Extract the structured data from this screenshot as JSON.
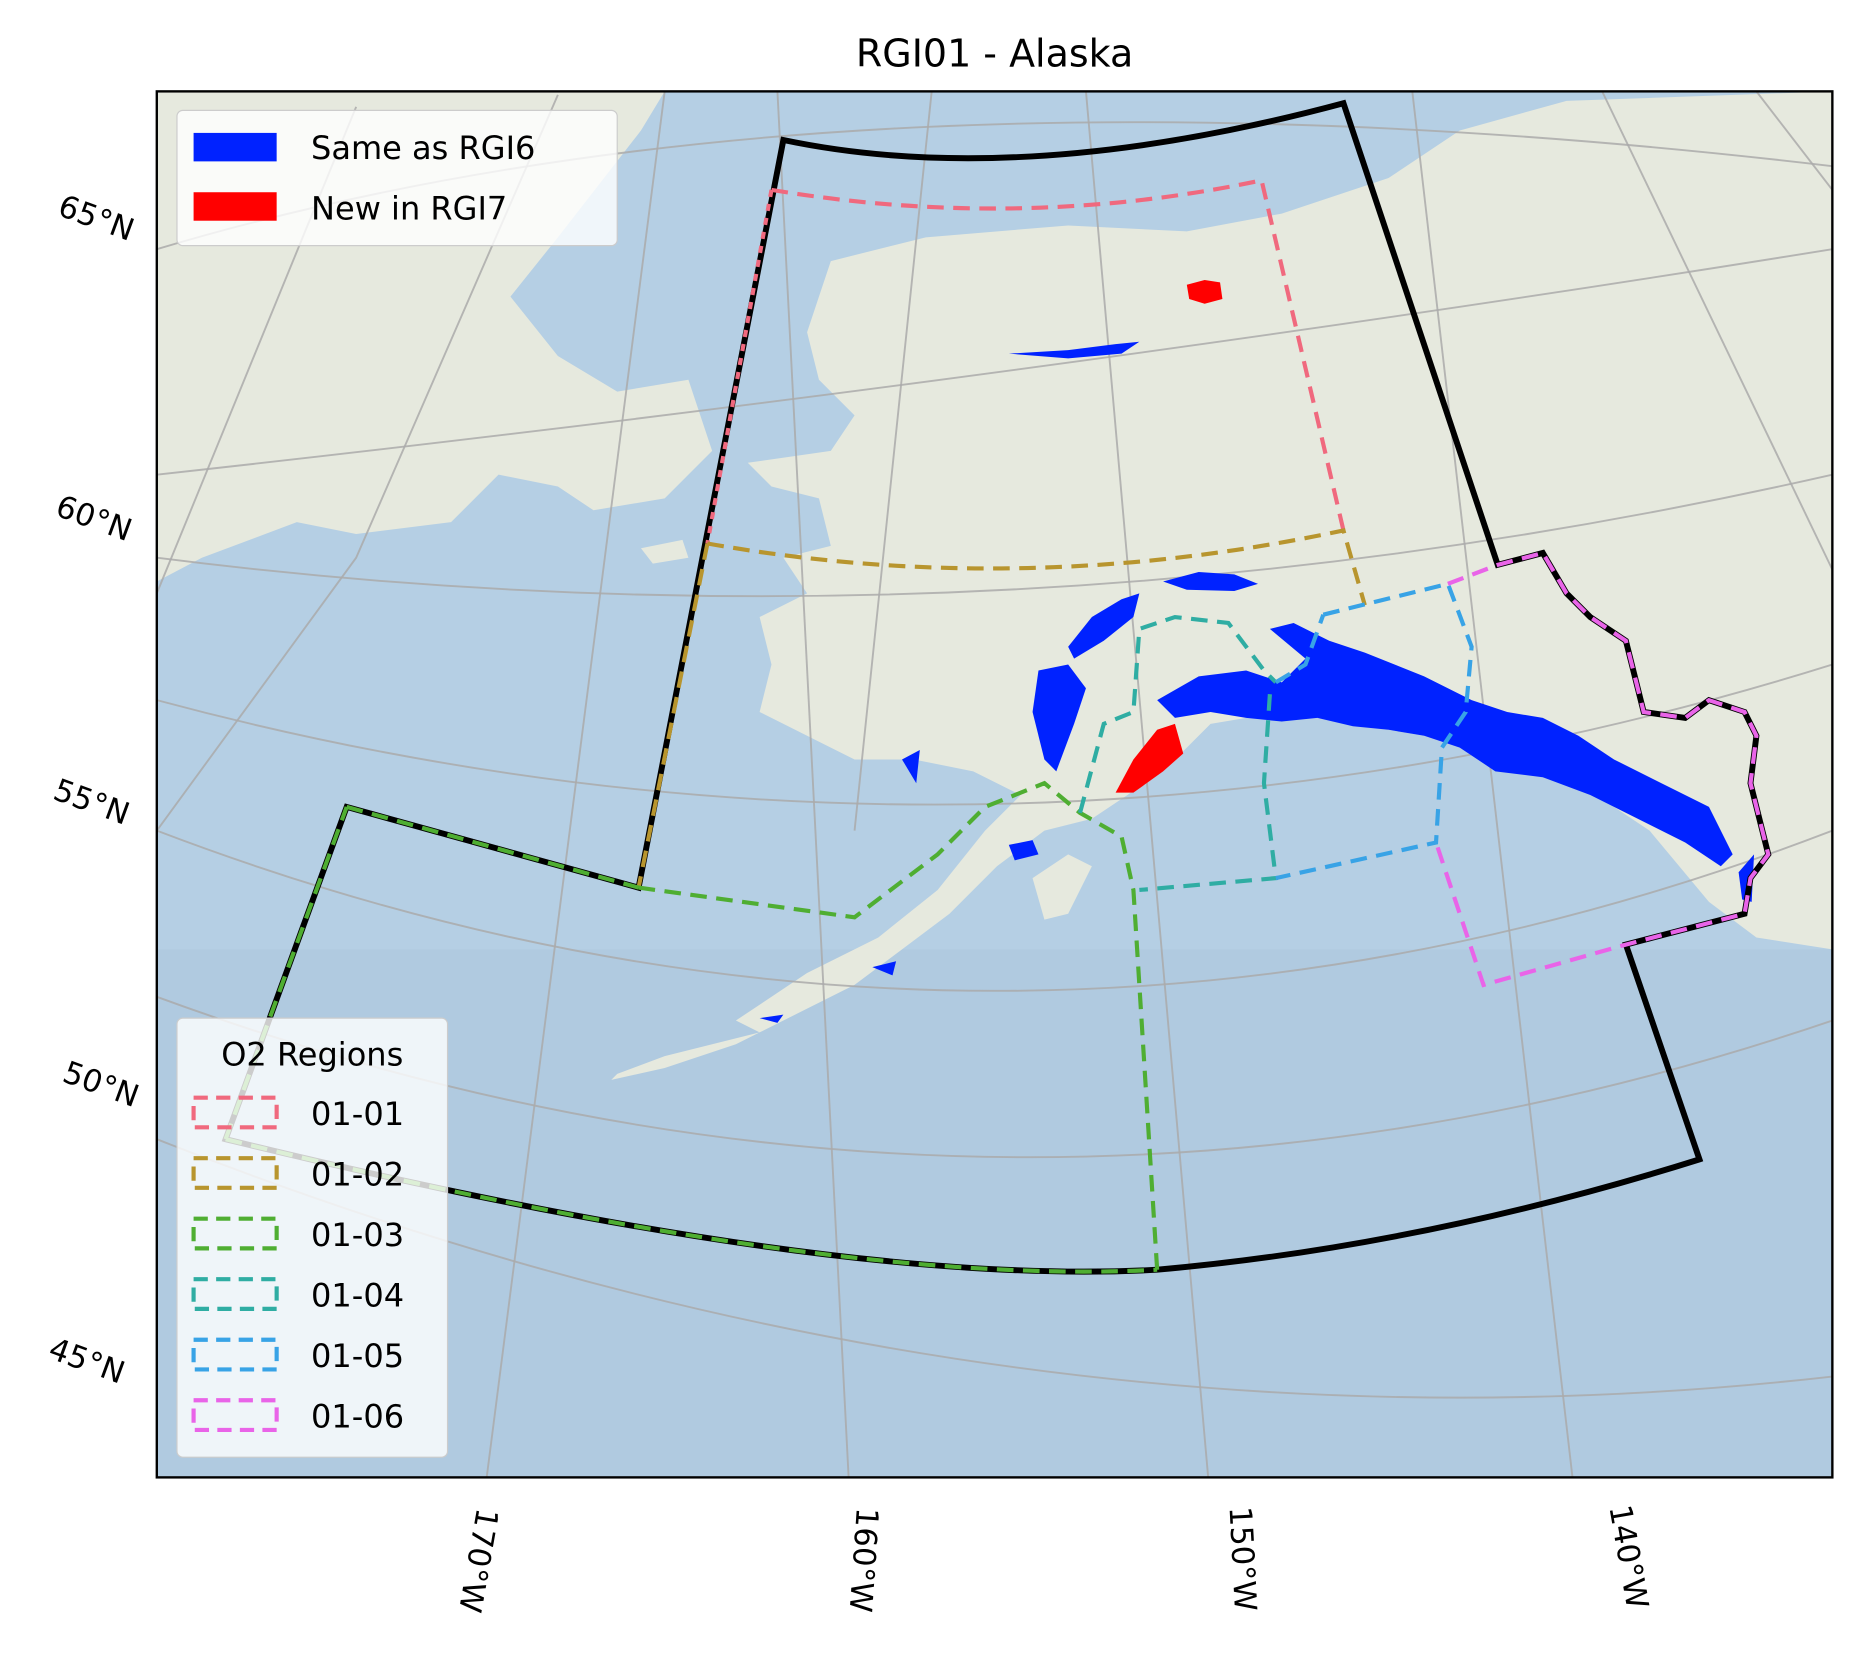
{
  "title": "RGI01 - Alaska",
  "lat_labels": [
    "65°N",
    "60°N",
    "55°N",
    "50°N",
    "45°N"
  ],
  "lon_labels": [
    "170°W",
    "160°W",
    "150°W",
    "140°W"
  ],
  "legend_glaciers": [
    {
      "label": "Same as RGI6",
      "color": "#0022ff"
    },
    {
      "label": "New in RGI7",
      "color": "#ff0000"
    }
  ],
  "legend_regions": {
    "title": "O2 Regions",
    "items": [
      {
        "label": "01-01",
        "color": "#f0697e"
      },
      {
        "label": "01-02",
        "color": "#b8952e"
      },
      {
        "label": "01-03",
        "color": "#4fae32"
      },
      {
        "label": "01-04",
        "color": "#2fada3"
      },
      {
        "label": "01-05",
        "color": "#38a3e6"
      },
      {
        "label": "01-06",
        "color": "#e964e8"
      }
    ]
  },
  "colors": {
    "sea": "#b5cfe4",
    "land": "#e6e9de",
    "outline": "#000000"
  }
}
